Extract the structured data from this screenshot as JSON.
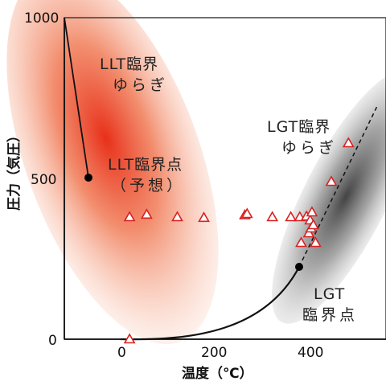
{
  "x_axis": {
    "label": "温度（℃）",
    "ticks": [
      "0",
      "200",
      "400"
    ]
  },
  "y_axis": {
    "label": "圧力（気圧）",
    "ticks": [
      "1000",
      "500",
      "0"
    ]
  },
  "regions": {
    "llt_fluct": {
      "line1": "LLT臨界",
      "line2": "ゆらぎ",
      "color": "#e8401c"
    },
    "lgt_fluct": {
      "line1": "LGT臨界",
      "line2": "ゆらぎ",
      "color": "#555555"
    }
  },
  "points": {
    "llt_cp": {
      "line1": "LLT臨界点",
      "line2": "（予想）"
    },
    "lgt_cp": {
      "line1": "LGT",
      "line2": "臨界点"
    }
  },
  "markers": {
    "color": "#d92020",
    "triangles": [
      [
        27,
        380
      ],
      [
        65,
        388
      ],
      [
        133,
        380
      ],
      [
        192,
        378
      ],
      [
        283,
        386
      ],
      [
        288,
        390
      ],
      [
        344,
        380
      ],
      [
        385,
        380
      ],
      [
        405,
        380
      ],
      [
        420,
        382
      ],
      [
        428,
        370
      ],
      [
        432,
        395
      ],
      [
        408,
        300
      ],
      [
        425,
        330
      ],
      [
        430,
        345
      ],
      [
        435,
        355
      ],
      [
        440,
        300
      ],
      [
        475,
        490
      ],
      [
        513,
        610
      ],
      [
        27,
        0
      ]
    ]
  }
}
